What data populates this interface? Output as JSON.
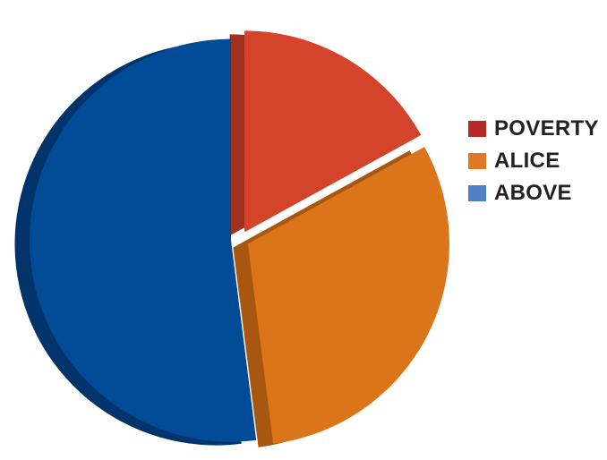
{
  "chart_data": {
    "type": "pie",
    "title": "",
    "style": "3d-exploded",
    "legend_position": "right",
    "slices": [
      {
        "label": "POVERTY",
        "value": 17,
        "color": "#D4442B",
        "side_color": "#A3301C",
        "legend_color": "#B52A26"
      },
      {
        "label": "ALICE",
        "value": 31,
        "color": "#DC7419",
        "side_color": "#A85710",
        "legend_color": "#E07A22"
      },
      {
        "label": "ABOVE",
        "value": 52,
        "color": "#024B96",
        "side_color": "#01346A",
        "legend_color": "#4F7FC4"
      }
    ]
  }
}
